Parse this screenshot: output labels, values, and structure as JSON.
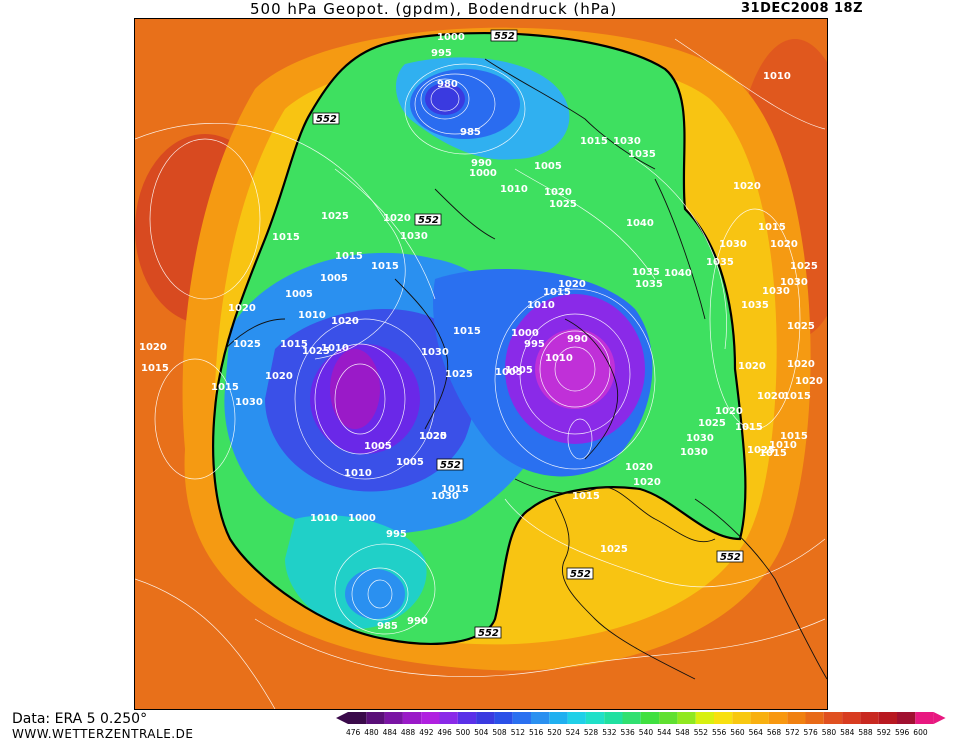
{
  "header": {
    "title": "500 hPa Geopot. (gpdm), Bodendruck (hPa)",
    "date": "31DEC2008 18Z"
  },
  "footer": {
    "data_source": "Data: ERA 5 0.250°",
    "website": "WWW.WETTERZENTRALE.DE"
  },
  "colorscale": {
    "ticks": [
      "476",
      "480",
      "484",
      "488",
      "492",
      "496",
      "500",
      "504",
      "508",
      "512",
      "516",
      "520",
      "524",
      "528",
      "532",
      "536",
      "540",
      "544",
      "548",
      "552",
      "556",
      "560",
      "564",
      "568",
      "572",
      "576",
      "580",
      "584",
      "588",
      "592",
      "596",
      "600"
    ],
    "colors": [
      "#3a0a4a",
      "#5a0f78",
      "#7a14a4",
      "#9a1ac8",
      "#b020e0",
      "#8a2ae8",
      "#5a30e8",
      "#3a3ae0",
      "#2a50e8",
      "#2a70f0",
      "#2a90f0",
      "#20b0f0",
      "#20d0e8",
      "#20e0c8",
      "#20e0a0",
      "#30e070",
      "#40e040",
      "#60e030",
      "#90e820",
      "#d8f010",
      "#f8e010",
      "#f8c810",
      "#f8b010",
      "#f89810",
      "#f08010",
      "#e86a18",
      "#e05020",
      "#d83c20",
      "#c82820",
      "#b81820",
      "#a01030",
      "#e81880"
    ]
  },
  "map": {
    "special_contour_label": "552",
    "pressure_labels": [
      {
        "t": "1000"
      },
      {
        "t": "995"
      },
      {
        "t": "980"
      },
      {
        "t": "985"
      },
      {
        "t": "990"
      },
      {
        "t": "1000"
      },
      {
        "t": "1010"
      },
      {
        "t": "1005"
      },
      {
        "t": "1020"
      },
      {
        "t": "1025"
      },
      {
        "t": "1015"
      },
      {
        "t": "1030"
      },
      {
        "t": "1035"
      },
      {
        "t": "1040"
      },
      {
        "t": "1035"
      },
      {
        "t": "1040"
      },
      {
        "t": "1035"
      },
      {
        "t": "1030"
      },
      {
        "t": "1020"
      },
      {
        "t": "1015"
      },
      {
        "t": "1010"
      },
      {
        "t": "1000"
      },
      {
        "t": "995"
      },
      {
        "t": "990"
      },
      {
        "t": "1005"
      },
      {
        "t": "1015"
      },
      {
        "t": "1025"
      },
      {
        "t": "1030"
      },
      {
        "t": "1020"
      },
      {
        "t": "1010"
      },
      {
        "t": "1005"
      },
      {
        "t": "1015"
      },
      {
        "t": "1025"
      },
      {
        "t": "1020"
      },
      {
        "t": "1015"
      },
      {
        "t": "1030"
      },
      {
        "t": "1015"
      },
      {
        "t": "1005"
      },
      {
        "t": "1010"
      },
      {
        "t": "1025"
      },
      {
        "t": "1020"
      },
      {
        "t": "1015"
      },
      {
        "t": "1005"
      },
      {
        "t": "1000"
      },
      {
        "t": "995"
      },
      {
        "t": "1010"
      },
      {
        "t": "1005"
      },
      {
        "t": "985"
      },
      {
        "t": "990"
      },
      {
        "t": "1010"
      },
      {
        "t": "1015"
      },
      {
        "t": "1020"
      },
      {
        "t": "1025"
      },
      {
        "t": "1030"
      },
      {
        "t": "1030"
      },
      {
        "t": "1025"
      },
      {
        "t": "1020"
      },
      {
        "t": "1015"
      },
      {
        "t": "1010"
      },
      {
        "t": "1005"
      },
      {
        "t": "1020"
      },
      {
        "t": "1015"
      },
      {
        "t": "1020"
      },
      {
        "t": "1025"
      },
      {
        "t": "1030"
      },
      {
        "t": "1020"
      },
      {
        "t": "1025"
      },
      {
        "t": "1035"
      },
      {
        "t": "1030"
      },
      {
        "t": "1020"
      },
      {
        "t": "1015"
      },
      {
        "t": "1010"
      },
      {
        "t": "1015"
      },
      {
        "t": "1020"
      },
      {
        "t": "1015"
      },
      {
        "t": "1020"
      },
      {
        "t": "1025"
      },
      {
        "t": "1030"
      },
      {
        "t": "1035"
      },
      {
        "t": "1020"
      },
      {
        "t": "1015"
      },
      {
        "t": "1020"
      },
      {
        "t": "1010"
      },
      {
        "t": "1015"
      },
      {
        "t": "1020"
      },
      {
        "t": "1025"
      },
      {
        "t": "1030"
      },
      {
        "t": "1025"
      },
      {
        "t": "1020"
      },
      {
        "t": "1015"
      }
    ]
  }
}
